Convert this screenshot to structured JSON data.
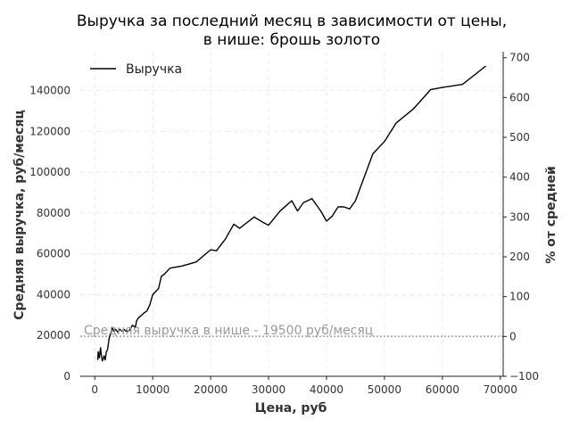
{
  "chart_data": {
    "type": "line",
    "title": "Выручка за последний месяц в зависимости от цены,",
    "subtitle": "в нише: брошь золото",
    "xlabel": "Цена, руб",
    "ylabel": "Средняя выручка, руб/месяц",
    "y2label": "% от средней",
    "xlim": [
      -2500,
      70500
    ],
    "ylim": [
      0,
      159000
    ],
    "y2lim": [
      -100,
      715
    ],
    "x_ticks": [
      0,
      10000,
      20000,
      30000,
      40000,
      50000,
      60000,
      70000
    ],
    "x_tick_labels": [
      "0",
      "10000",
      "20000",
      "30000",
      "40000",
      "50000",
      "60000",
      "70000"
    ],
    "y_ticks": [
      0,
      20000,
      40000,
      60000,
      80000,
      100000,
      120000,
      140000
    ],
    "y_tick_labels": [
      "0",
      "20000",
      "40000",
      "60000",
      "80000",
      "100000",
      "120000",
      "140000"
    ],
    "y2_ticks": [
      -100,
      0,
      100,
      200,
      300,
      400,
      500,
      600,
      700
    ],
    "y2_tick_labels": [
      "−100",
      "0",
      "100",
      "200",
      "300",
      "400",
      "500",
      "600",
      "700"
    ],
    "grid": true,
    "legend_position": "top-left",
    "series": [
      {
        "name": "Выручка",
        "color": "#000000",
        "x": [
          500,
          600,
          800,
          1000,
          1100,
          1300,
          1500,
          1600,
          1800,
          2000,
          2200,
          2500,
          2800,
          3000,
          3300,
          3600,
          4000,
          4300,
          4700,
          5000,
          5500,
          6000,
          6500,
          7000,
          7200,
          7500,
          8500,
          9000,
          9500,
          10000,
          11000,
          11500,
          12000,
          13000,
          15000,
          17500,
          20000,
          21000,
          22500,
          24000,
          25000,
          27500,
          29000,
          30000,
          31000,
          32000,
          33000,
          34000,
          35000,
          36000,
          37500,
          39000,
          40000,
          41000,
          42000,
          43000,
          44000,
          45000,
          48000,
          50000,
          52000,
          55000,
          58000,
          60000,
          63500,
          67500
        ],
        "y": [
          8000,
          12000,
          9000,
          14000,
          11000,
          7500,
          9000,
          10000,
          8000,
          12000,
          13000,
          19000,
          21000,
          24000,
          22000,
          23000,
          21500,
          23000,
          22000,
          23000,
          22000,
          22500,
          25000,
          24000,
          27000,
          28500,
          31000,
          32000,
          35000,
          40000,
          43000,
          49000,
          50000,
          53000,
          54000,
          56000,
          62000,
          61500,
          67000,
          74500,
          72500,
          78000,
          75500,
          74000,
          77500,
          81000,
          83500,
          86000,
          81000,
          85000,
          87000,
          81000,
          76000,
          78500,
          83000,
          83000,
          82000,
          86000,
          109000,
          115000,
          124000,
          131000,
          140500,
          141500,
          143000,
          152000
        ]
      }
    ],
    "reference_line": {
      "y": 19500,
      "label": "Средняя выручка в нише - 19500 руб/месяц",
      "color": "#aaaaaa"
    }
  }
}
